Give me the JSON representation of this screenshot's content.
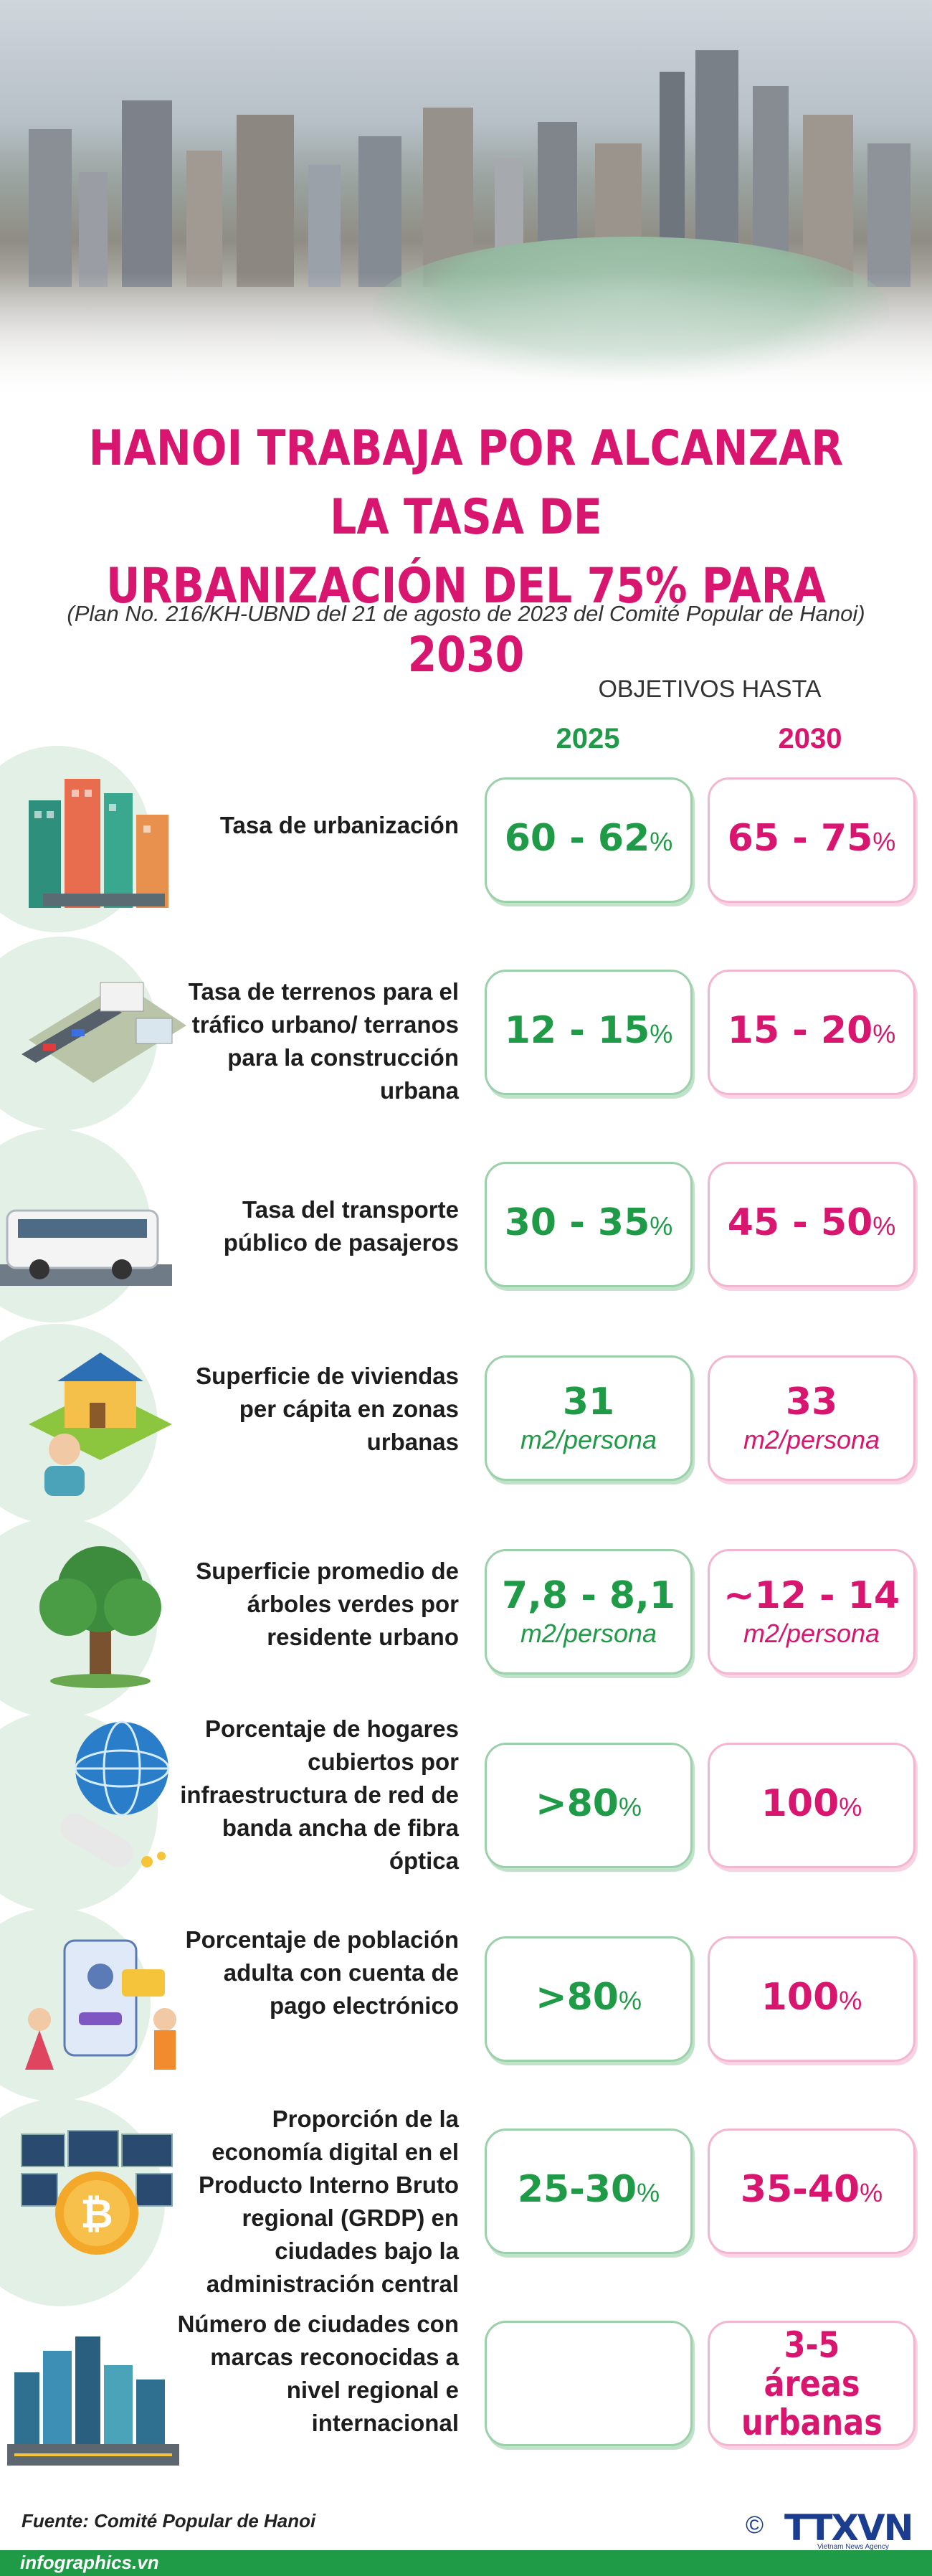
{
  "title_line1": "HANOI TRABAJA POR ALCANZAR LA TASA DE",
  "title_line2": "URBANIZACIÓN DEL 75% PARA 2030",
  "subtitle": "(Plan No. 216/KH-UBND del 21 de agosto de 2023 del Comité Popular de Hanoi)",
  "objectives_header": "OBJETIVOS HASTA",
  "year_1": "2025",
  "year_2": "2030",
  "colors": {
    "green": "#1f9a47",
    "pink": "#d8156f",
    "icon_circle": "#e3f0e6"
  },
  "rows": [
    {
      "icon": "city-buildings-icon",
      "label": "Tasa de urbanización",
      "v2025": "60 - 62",
      "u2025": "%",
      "v2030": "65 - 75",
      "u2030": "%"
    },
    {
      "icon": "urban-road-icon",
      "label": "Tasa de terrenos para el tráfico urbano/ terranos para la construcción urbana",
      "v2025": "12 - 15",
      "u2025": "%",
      "v2030": "15 - 20",
      "u2030": "%"
    },
    {
      "icon": "bus-icon",
      "label": "Tasa del transporte público de pasajeros",
      "v2025": "30 - 35",
      "u2025": "%",
      "v2030": "45 - 50",
      "u2030": "%"
    },
    {
      "icon": "house-person-icon",
      "label": "Superficie de viviendas per cápita en zonas urbanas",
      "v2025": "31",
      "u2025": "m2/persona",
      "v2030": "33",
      "u2030": "m2/persona"
    },
    {
      "icon": "tree-icon",
      "label": "Superficie promedio de árboles verdes por residente urbano",
      "v2025": "7,8 - 8,1",
      "u2025": "m2/persona",
      "v2030": "~12 - 14",
      "u2030": "m2/persona"
    },
    {
      "icon": "fiber-globe-icon",
      "label": "Porcentaje de hogares cubiertos por infraestructura de red de banda ancha de fibra óptica",
      "v2025": ">80",
      "u2025": "%",
      "v2030": "100",
      "u2030": "%"
    },
    {
      "icon": "e-payment-icon",
      "label": "Porcentaje de población adulta con cuenta de pago electrónico",
      "v2025": ">80",
      "u2025": "%",
      "v2030": "100",
      "u2030": "%"
    },
    {
      "icon": "bitcoin-screens-icon",
      "label": "Proporción de la economía digital en el Producto Interno Bruto regional (GRDP) en ciudades bajo la administración central",
      "v2025": "25-30",
      "u2025": "%",
      "v2030": "35-40",
      "u2030": "%"
    },
    {
      "icon": "city-skyline-icon",
      "label": "Número de ciudades con marcas reconocidas a nivel regional e internacional",
      "v2025": "",
      "u2025": "",
      "v2030": "3-5 áreas urbanas",
      "u2030": ""
    }
  ],
  "source": "Fuente: Comité Popular de Hanoi",
  "website": "infographics.vn",
  "logo": {
    "copyright": "©",
    "name": "TTXVN",
    "tagline": "Vietnam News Agency"
  }
}
